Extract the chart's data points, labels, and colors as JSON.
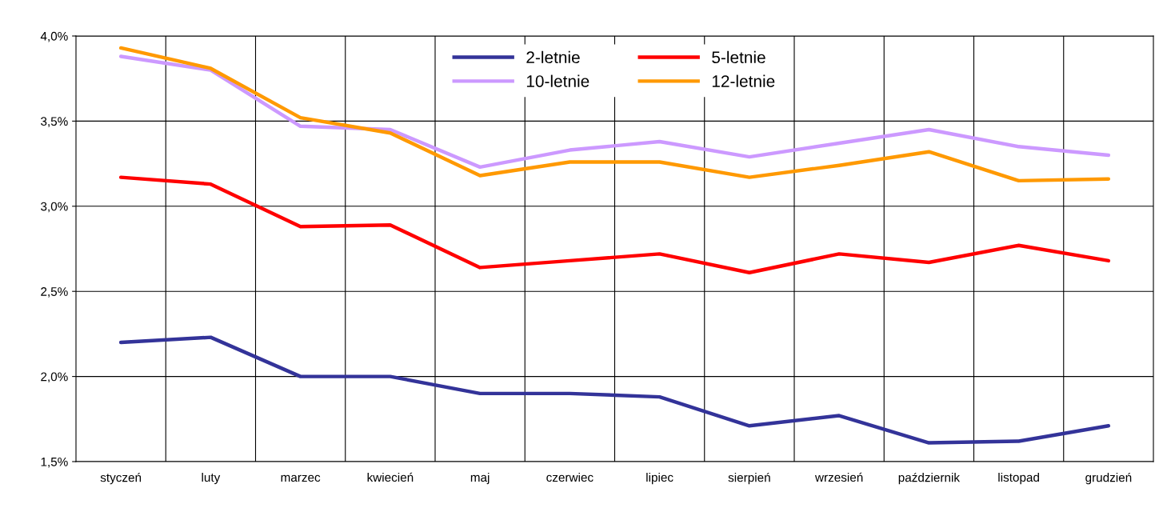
{
  "chart_data": {
    "type": "line",
    "categories": [
      "styczeń",
      "luty",
      "marzec",
      "kwiecień",
      "maj",
      "czerwiec",
      "lipiec",
      "sierpień",
      "wrzesień",
      "październik",
      "listopad",
      "grudzień"
    ],
    "series": [
      {
        "name": "2-letnie",
        "color": "#333399",
        "values": [
          2.2,
          2.23,
          2.0,
          2.0,
          1.9,
          1.9,
          1.88,
          1.71,
          1.77,
          1.61,
          1.62,
          1.71
        ]
      },
      {
        "name": "5-letnie",
        "color": "#ff0000",
        "values": [
          3.17,
          3.13,
          2.88,
          2.89,
          2.64,
          2.68,
          2.72,
          2.61,
          2.72,
          2.67,
          2.77,
          2.68
        ]
      },
      {
        "name": "10-letnie",
        "color": "#cc99ff",
        "values": [
          3.88,
          3.8,
          3.47,
          3.45,
          3.23,
          3.33,
          3.38,
          3.29,
          3.37,
          3.45,
          3.35,
          3.3
        ]
      },
      {
        "name": "12-letnie",
        "color": "#ff9900",
        "values": [
          3.93,
          3.81,
          3.52,
          3.43,
          3.18,
          3.26,
          3.26,
          3.17,
          3.24,
          3.32,
          3.15,
          3.16
        ]
      }
    ],
    "ylim": [
      1.5,
      4.0
    ],
    "yticks": [
      {
        "value": 1.5,
        "label": "1,5%"
      },
      {
        "value": 2.0,
        "label": "2,0%"
      },
      {
        "value": 2.5,
        "label": "2,5%"
      },
      {
        "value": 3.0,
        "label": "3,0%"
      },
      {
        "value": 3.5,
        "label": "3,5%"
      },
      {
        "value": 4.0,
        "label": "4,0%"
      }
    ],
    "grid": true,
    "legend": "top",
    "marker": "none",
    "line_style": "solid"
  }
}
